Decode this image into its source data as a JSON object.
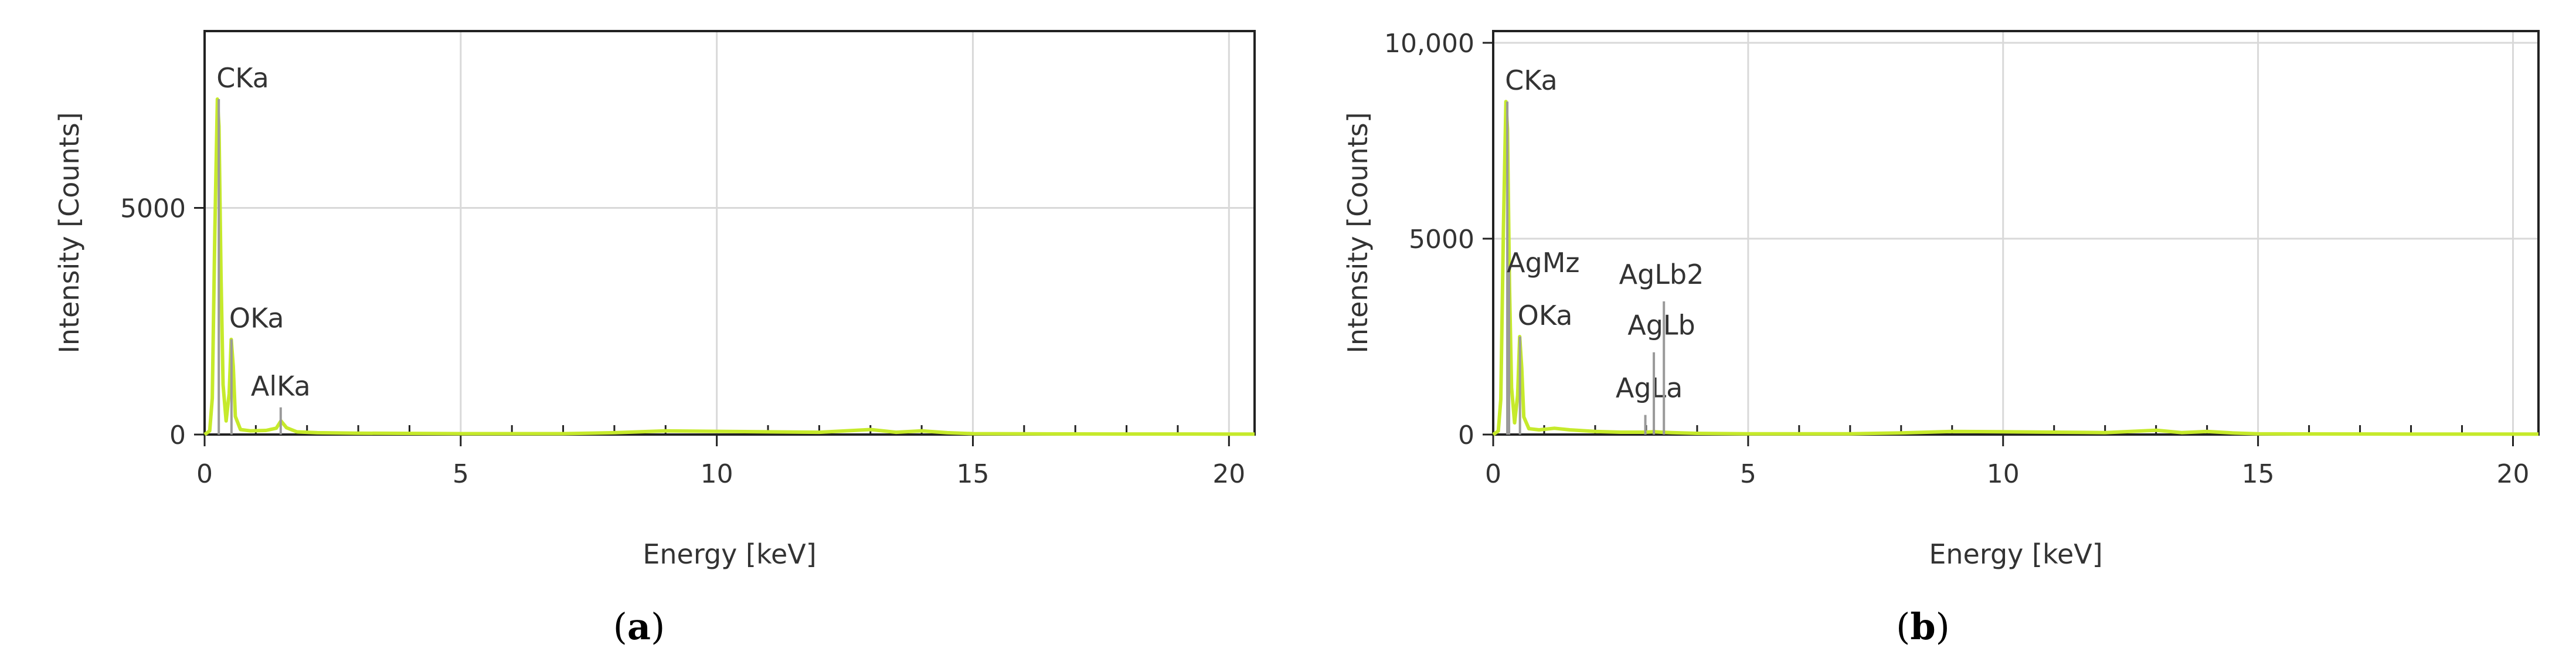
{
  "chart_data": [
    {
      "type": "line",
      "panel": "a",
      "caption": {
        "open": "(",
        "letter": "a",
        "close": ")"
      },
      "xlabel": "Energy [keV]",
      "ylabel": "Intensity [Counts]",
      "xlim": [
        0,
        20.5
      ],
      "ylim": [
        0,
        8900
      ],
      "x_ticks": [
        0,
        5,
        10,
        15,
        20
      ],
      "x_minor_step": 1,
      "y_ticks": [
        0,
        5000
      ],
      "y_tick_labels": [
        "0",
        "5000"
      ],
      "grid": true,
      "series": [
        {
          "color": "#c6ea2b",
          "x": [
            0,
            0.1,
            0.15,
            0.2,
            0.25,
            0.28,
            0.32,
            0.36,
            0.42,
            0.48,
            0.52,
            0.56,
            0.6,
            0.7,
            0.9,
            1.2,
            1.4,
            1.49,
            1.6,
            1.8,
            2.2,
            3,
            5,
            7,
            8,
            9,
            10,
            11,
            12,
            13,
            13.5,
            14,
            14.5,
            15,
            16,
            18,
            20,
            20.5
          ],
          "y": [
            0,
            80,
            800,
            4500,
            7400,
            6800,
            3500,
            1100,
            300,
            900,
            2100,
            1500,
            400,
            110,
            80,
            90,
            140,
            300,
            150,
            60,
            40,
            30,
            20,
            20,
            40,
            80,
            70,
            60,
            50,
            110,
            50,
            80,
            40,
            20,
            15,
            12,
            10,
            10
          ]
        }
      ],
      "peaks": [
        {
          "label": "CKa",
          "x": 0.277,
          "y": 7400
        },
        {
          "label": "OKa",
          "x": 0.525,
          "y": 2100
        },
        {
          "label": "AlKa",
          "x": 1.486,
          "y": 600
        }
      ]
    },
    {
      "type": "line",
      "panel": "b",
      "caption": {
        "open": "(",
        "letter": "b",
        "close": ")"
      },
      "xlabel": "Energy [keV]",
      "ylabel": "Intensity [Counts]",
      "xlim": [
        0,
        20.5
      ],
      "ylim": [
        0,
        10300
      ],
      "x_ticks": [
        0,
        5,
        10,
        15,
        20
      ],
      "x_minor_step": 1,
      "y_ticks": [
        0,
        5000,
        10000
      ],
      "y_tick_labels": [
        "0",
        "5000",
        "10,000"
      ],
      "grid": true,
      "series": [
        {
          "color": "#c6ea2b",
          "x": [
            0,
            0.1,
            0.15,
            0.2,
            0.25,
            0.28,
            0.32,
            0.36,
            0.42,
            0.48,
            0.52,
            0.56,
            0.6,
            0.7,
            0.9,
            1.2,
            1.5,
            2,
            2.5,
            2.98,
            3.15,
            3.3,
            3.5,
            4,
            5,
            7,
            8,
            9,
            10,
            11,
            12,
            13,
            13.5,
            14,
            14.5,
            15,
            16,
            18,
            20,
            20.5
          ],
          "y": [
            0,
            90,
            900,
            5200,
            8500,
            7800,
            3800,
            1200,
            300,
            1000,
            2500,
            1700,
            450,
            150,
            120,
            160,
            120,
            80,
            60,
            60,
            70,
            60,
            50,
            30,
            20,
            20,
            40,
            80,
            70,
            60,
            50,
            110,
            50,
            80,
            40,
            20,
            15,
            12,
            10,
            10
          ]
        }
      ],
      "peaks": [
        {
          "label": "CKa",
          "x": 0.277,
          "y": 8500
        },
        {
          "label": "AgMz",
          "x": 0.311,
          "y": 4300
        },
        {
          "label": "OKa",
          "x": 0.525,
          "y": 2500
        },
        {
          "label": "AgLa",
          "x": 2.984,
          "y": 500
        },
        {
          "label": "AgLb",
          "x": 3.151,
          "y": 2100
        },
        {
          "label": "AgLb2",
          "x": 3.348,
          "y": 3400
        }
      ]
    }
  ]
}
